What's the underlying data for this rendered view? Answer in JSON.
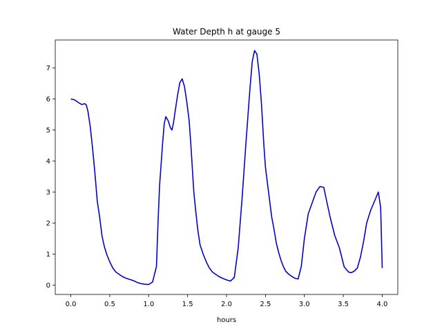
{
  "chart_data": {
    "type": "line",
    "title": "Water Depth h at gauge 5",
    "xlabel": "hours",
    "ylabel": "",
    "xlim": [
      -0.2,
      4.2
    ],
    "ylim": [
      -0.3,
      7.9
    ],
    "xticks": [
      0.0,
      0.5,
      1.0,
      1.5,
      2.0,
      2.5,
      3.0,
      3.5,
      4.0
    ],
    "xtick_labels": [
      "0.0",
      "0.5",
      "1.0",
      "1.5",
      "2.0",
      "2.5",
      "3.0",
      "3.5",
      "4.0"
    ],
    "yticks": [
      0,
      1,
      2,
      3,
      4,
      5,
      6,
      7
    ],
    "ytick_labels": [
      "0",
      "1",
      "2",
      "3",
      "4",
      "5",
      "6",
      "7"
    ],
    "grid": false,
    "series": [
      {
        "color": "#0000cc",
        "x": [
          0.0,
          0.05,
          0.1,
          0.14,
          0.18,
          0.2,
          0.22,
          0.25,
          0.28,
          0.31,
          0.34,
          0.37,
          0.4,
          0.43,
          0.46,
          0.5,
          0.54,
          0.58,
          0.62,
          0.66,
          0.7,
          0.75,
          0.8,
          0.85,
          0.9,
          0.95,
          1.0,
          1.05,
          1.1,
          1.12,
          1.14,
          1.16,
          1.18,
          1.2,
          1.22,
          1.25,
          1.28,
          1.3,
          1.32,
          1.34,
          1.37,
          1.4,
          1.43,
          1.46,
          1.49,
          1.52,
          1.54,
          1.56,
          1.58,
          1.6,
          1.63,
          1.66,
          1.7,
          1.74,
          1.78,
          1.82,
          1.86,
          1.9,
          1.95,
          2.0,
          2.05,
          2.1,
          2.15,
          2.2,
          2.25,
          2.3,
          2.33,
          2.36,
          2.39,
          2.42,
          2.45,
          2.48,
          2.5,
          2.52,
          2.54,
          2.56,
          2.58,
          2.61,
          2.64,
          2.67,
          2.7,
          2.73,
          2.76,
          2.8,
          2.84,
          2.88,
          2.92,
          2.96,
          3.0,
          3.05,
          3.1,
          3.15,
          3.2,
          3.25,
          3.27,
          3.3,
          3.33,
          3.36,
          3.39,
          3.42,
          3.45,
          3.47,
          3.49,
          3.51,
          3.54,
          3.57,
          3.6,
          3.64,
          3.68,
          3.72,
          3.76,
          3.8,
          3.85,
          3.9,
          3.95,
          3.98,
          4.0
        ],
        "y": [
          6.0,
          5.97,
          5.88,
          5.82,
          5.85,
          5.8,
          5.6,
          5.1,
          4.4,
          3.6,
          2.7,
          2.2,
          1.6,
          1.25,
          1.0,
          0.75,
          0.55,
          0.42,
          0.35,
          0.28,
          0.23,
          0.19,
          0.15,
          0.09,
          0.05,
          0.03,
          0.02,
          0.1,
          0.6,
          2.0,
          3.2,
          3.9,
          4.6,
          5.2,
          5.43,
          5.3,
          5.07,
          5.0,
          5.25,
          5.6,
          6.1,
          6.52,
          6.65,
          6.4,
          5.9,
          5.3,
          4.6,
          3.8,
          3.0,
          2.5,
          1.8,
          1.3,
          1.0,
          0.75,
          0.55,
          0.42,
          0.35,
          0.28,
          0.22,
          0.17,
          0.13,
          0.25,
          1.2,
          2.8,
          4.6,
          6.3,
          7.2,
          7.56,
          7.45,
          6.8,
          5.8,
          4.5,
          3.8,
          3.4,
          3.0,
          2.6,
          2.2,
          1.8,
          1.35,
          1.05,
          0.8,
          0.6,
          0.45,
          0.35,
          0.28,
          0.22,
          0.2,
          0.6,
          1.5,
          2.3,
          2.65,
          3.0,
          3.18,
          3.15,
          2.9,
          2.55,
          2.2,
          1.9,
          1.6,
          1.4,
          1.2,
          1.0,
          0.8,
          0.6,
          0.5,
          0.42,
          0.4,
          0.45,
          0.55,
          0.9,
          1.4,
          2.0,
          2.4,
          2.7,
          3.0,
          2.5,
          0.55
        ]
      }
    ]
  }
}
